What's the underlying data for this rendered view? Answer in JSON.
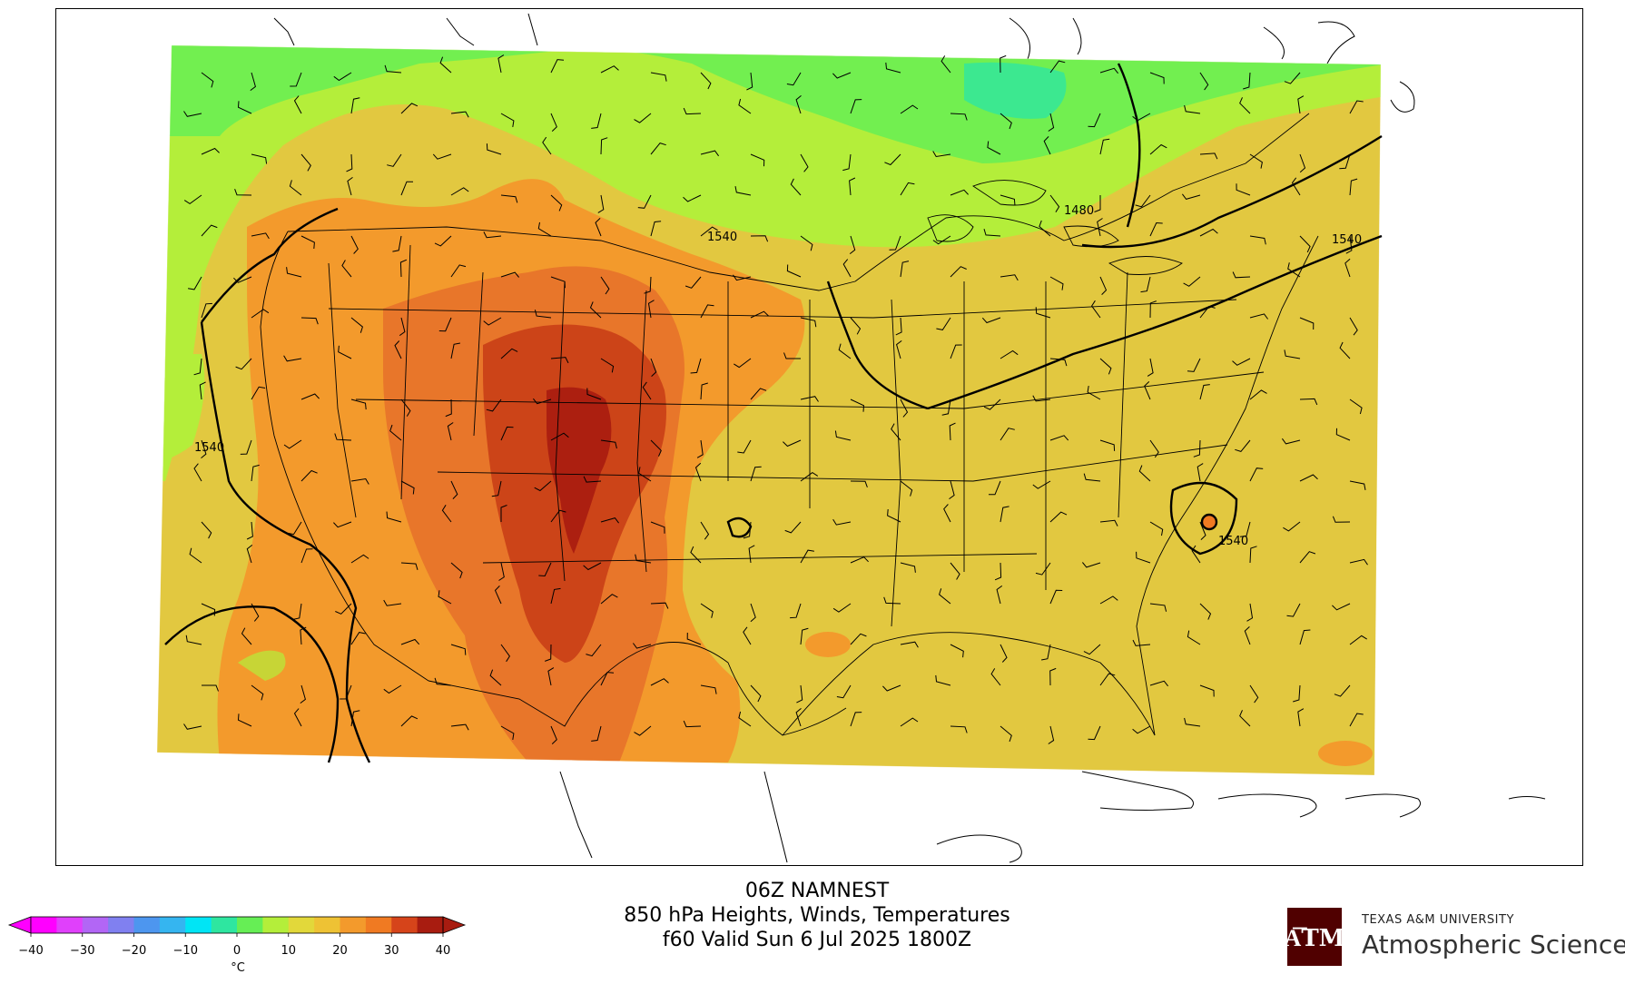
{
  "title": {
    "line1": "06Z NAMNEST",
    "line2": "850 hPa Heights, Winds, Temperatures",
    "line3": "f60 Valid Sun 6 Jul 2025 1800Z"
  },
  "contour_labels": [
    "1540",
    "1540",
    "1480",
    "1540",
    "1540"
  ],
  "colorbar": {
    "unit": "°C",
    "ticks": [
      "−40",
      "−30",
      "−20",
      "−10",
      "0",
      "10",
      "20",
      "30",
      "40"
    ],
    "colors": [
      "#ff00ff",
      "#e040fb",
      "#b266f5",
      "#8080f0",
      "#4d96ef",
      "#35b5f0",
      "#00e5f5",
      "#2ee6a0",
      "#66ee55",
      "#b4ee3a",
      "#e2d83a",
      "#eec234",
      "#f39a2c",
      "#f07a22",
      "#d6441a",
      "#a81c10"
    ]
  },
  "logo": {
    "top_text": "TEXAS A&M UNIVERSITY",
    "main_text": "Atmospheric Sciences",
    "mark": "ATM"
  },
  "colors": {
    "green": "#66ee55",
    "yellowgreen": "#b4ee3a",
    "yellow": "#e2c840",
    "orange": "#f39a2c",
    "darkorange": "#e8762a",
    "red": "#cc4418",
    "darkred": "#a81c10"
  }
}
